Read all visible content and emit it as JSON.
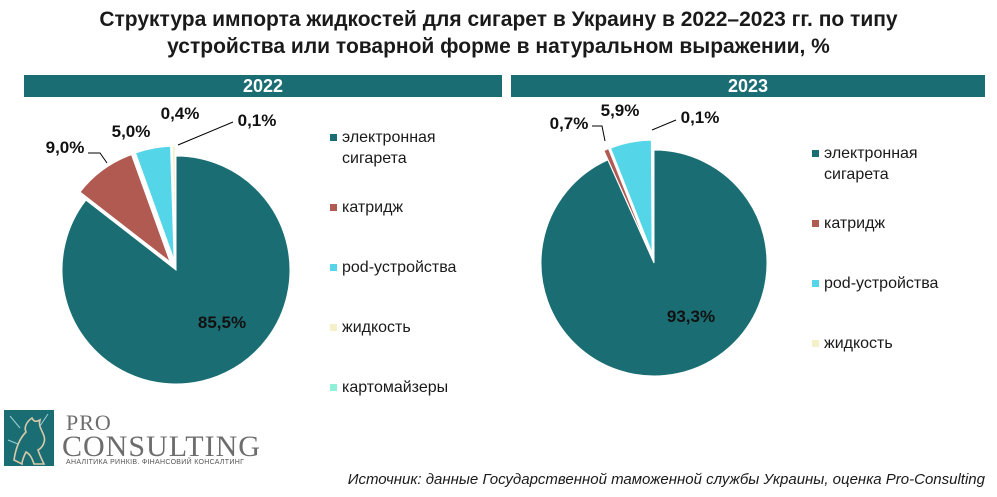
{
  "chart_data": [
    {
      "type": "pie",
      "title": "Структура импорта жидкостей для сигарет в Украину в 2022–2023 гг. по типу устройства или товарной форме в натуральном выражении, %",
      "panel_title": "2022",
      "unit": "%",
      "legend_position": "right",
      "slices": [
        {
          "label": "электронная\nсигарета",
          "value": 85.5,
          "value_label": "85,5%",
          "color": "#1a6e73"
        },
        {
          "label": "катридж",
          "value": 9.0,
          "value_label": "9,0%",
          "color": "#b05a52"
        },
        {
          "label": "pod-устройства",
          "value": 5.0,
          "value_label": "5,0%",
          "color": "#55d6e8"
        },
        {
          "label": "жидкость",
          "value": 0.4,
          "value_label": "0,4%",
          "color": "#f4f0c8"
        },
        {
          "label": "картомайзеры",
          "value": 0.1,
          "value_label": "0,1%",
          "color": "#8ef0d6"
        }
      ]
    },
    {
      "type": "pie",
      "panel_title": "2023",
      "unit": "%",
      "legend_position": "right",
      "slices": [
        {
          "label": "электронная\nсигарета",
          "value": 93.3,
          "value_label": "93,3%",
          "color": "#1a6e73"
        },
        {
          "label": "катридж",
          "value": 0.7,
          "value_label": "0,7%",
          "color": "#b05a52"
        },
        {
          "label": "pod-устройства",
          "value": 5.9,
          "value_label": "5,9%",
          "color": "#55d6e8"
        },
        {
          "label": "жидкость",
          "value": 0.1,
          "value_label": "0,1%",
          "color": "#f4f0c8"
        }
      ]
    }
  ],
  "title_lines": [
    "Структура импорта жидкостей для сигарет в Украину в 2022–2023 гг. по типу",
    "устройства или товарной форме в натуральном выражении, %"
  ],
  "logo": {
    "pro": "PRO",
    "consulting": "CONSULTING",
    "tagline": "АНАЛІТИКА РИНКІВ. ФІНАНСОВИЙ КОНСАЛТИНГ"
  },
  "source": "Источник: данные Государственной таможенной службы Украины, оценка Pro-Consulting"
}
